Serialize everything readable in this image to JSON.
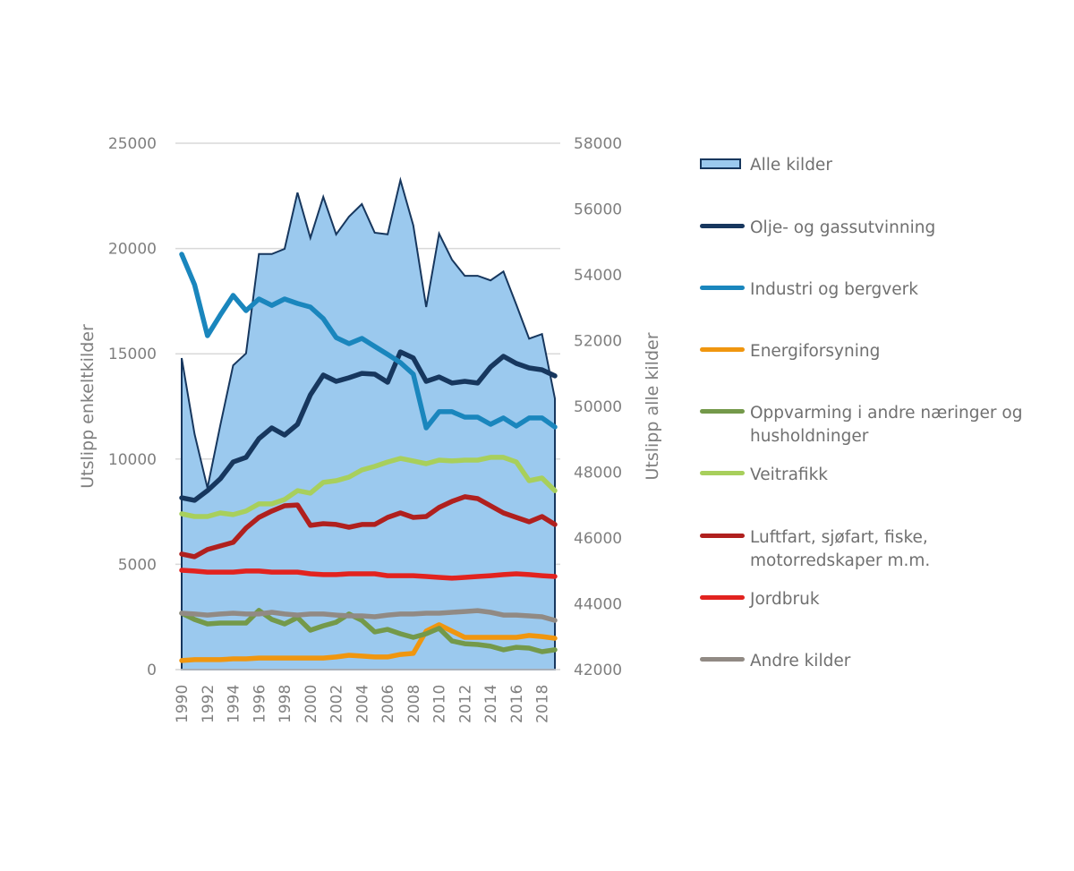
{
  "chart_data": {
    "type": "line",
    "title": "",
    "xlabel": "",
    "ylabel": "Utslipp enkeltkilder",
    "ylabel_right": "Utslipp alle kilder",
    "ylim": [
      0,
      25000
    ],
    "ylim_right": [
      42000,
      58000
    ],
    "yticks": [
      "0",
      "5000",
      "10000",
      "15000",
      "20000",
      "25000"
    ],
    "yticks_right": [
      "42000",
      "44000",
      "46000",
      "48000",
      "50000",
      "52000",
      "54000",
      "56000",
      "58000"
    ],
    "x": [
      1990,
      1991,
      1992,
      1993,
      1994,
      1995,
      1996,
      1997,
      1998,
      1999,
      2000,
      2001,
      2002,
      2003,
      2004,
      2005,
      2006,
      2007,
      2008,
      2009,
      2010,
      2011,
      2012,
      2013,
      2014,
      2015,
      2016,
      2017,
      2018,
      2019
    ],
    "xticks": [
      "1990",
      "1992",
      "1994",
      "1996",
      "1998",
      "2000",
      "2002",
      "2004",
      "2006",
      "2008",
      "2010",
      "2012",
      "2014",
      "2016",
      "2018"
    ],
    "grid": true,
    "legend_position": "right",
    "series": [
      {
        "name": "Alle kilder",
        "type": "area",
        "axis": "right",
        "color": "#9bc9ee",
        "stroke": "#17375e",
        "values": [
          51470,
          49160,
          47520,
          49420,
          51250,
          51610,
          54630,
          54630,
          54790,
          56500,
          55120,
          56370,
          55230,
          55770,
          56150,
          55280,
          55230,
          56880,
          55500,
          53020,
          55250,
          54460,
          53970,
          53970,
          53830,
          54100,
          53090,
          52060,
          52200,
          50240
        ]
      },
      {
        "name": "Olje- og gassutvinning",
        "type": "line",
        "axis": "left",
        "color": "#17375e",
        "values": [
          8160,
          8040,
          8500,
          9060,
          9860,
          10080,
          10970,
          11480,
          11140,
          11650,
          13050,
          13990,
          13690,
          13860,
          14070,
          14030,
          13650,
          15090,
          14800,
          13690,
          13900,
          13610,
          13690,
          13610,
          14370,
          14880,
          14540,
          14330,
          14240,
          13950
        ]
      },
      {
        "name": "Industri og bergverk",
        "type": "line",
        "axis": "left",
        "color": "#1a86bd",
        "values": [
          19730,
          18280,
          15860,
          16840,
          17770,
          17050,
          17600,
          17300,
          17600,
          17390,
          17220,
          16670,
          15770,
          15480,
          15730,
          15350,
          14970,
          14580,
          14030,
          11480,
          12250,
          12250,
          11990,
          11990,
          11650,
          11950,
          11570,
          11950,
          11950,
          11520
        ]
      },
      {
        "name": "Energiforsyning",
        "type": "line",
        "axis": "left",
        "color": "#f0960f",
        "values": [
          430,
          470,
          470,
          470,
          510,
          510,
          550,
          550,
          550,
          550,
          550,
          550,
          600,
          680,
          640,
          600,
          600,
          720,
          770,
          1830,
          2130,
          1830,
          1530,
          1530,
          1530,
          1530,
          1530,
          1620,
          1570,
          1490
        ]
      },
      {
        "name": "Oppvarming i andre næringer og\nhusholdninger",
        "type": "line",
        "axis": "left",
        "color": "#74994a",
        "values": [
          2680,
          2380,
          2170,
          2210,
          2210,
          2210,
          2810,
          2380,
          2170,
          2470,
          1870,
          2080,
          2250,
          2640,
          2340,
          1790,
          1910,
          1700,
          1530,
          1700,
          1960,
          1360,
          1230,
          1190,
          1110,
          940,
          1060,
          1020,
          850,
          940
        ]
      },
      {
        "name": "Veitrafikk",
        "type": "line",
        "axis": "left",
        "color": "#a8cf5c",
        "values": [
          7400,
          7270,
          7270,
          7440,
          7360,
          7530,
          7870,
          7870,
          8080,
          8500,
          8380,
          8890,
          8970,
          9140,
          9480,
          9650,
          9860,
          10030,
          9910,
          9780,
          9950,
          9910,
          9950,
          9950,
          10080,
          10080,
          9860,
          8970,
          9100,
          8500
        ]
      },
      {
        "name": "Luftfart, sjøfart, fiske,\nmotorredskaper m.m.",
        "type": "line",
        "axis": "left",
        "color": "#b0201e",
        "values": [
          5490,
          5360,
          5700,
          5870,
          6040,
          6720,
          7230,
          7530,
          7780,
          7820,
          6850,
          6930,
          6890,
          6760,
          6890,
          6890,
          7230,
          7440,
          7230,
          7270,
          7700,
          7990,
          8210,
          8120,
          7780,
          7440,
          7230,
          7020,
          7270,
          6890
        ]
      },
      {
        "name": "Jordbruk",
        "type": "line",
        "axis": "left",
        "color": "#e2231f",
        "values": [
          4720,
          4680,
          4630,
          4630,
          4630,
          4680,
          4680,
          4630,
          4630,
          4630,
          4550,
          4510,
          4510,
          4550,
          4550,
          4550,
          4460,
          4460,
          4460,
          4420,
          4380,
          4340,
          4380,
          4420,
          4460,
          4510,
          4550,
          4510,
          4460,
          4420
        ]
      },
      {
        "name": "Andre kilder",
        "type": "line",
        "axis": "left",
        "color": "#918a84",
        "values": [
          2680,
          2640,
          2590,
          2640,
          2680,
          2640,
          2640,
          2720,
          2640,
          2590,
          2640,
          2640,
          2590,
          2550,
          2550,
          2510,
          2590,
          2640,
          2640,
          2680,
          2680,
          2720,
          2760,
          2800,
          2720,
          2590,
          2590,
          2550,
          2510,
          2340
        ]
      }
    ]
  }
}
